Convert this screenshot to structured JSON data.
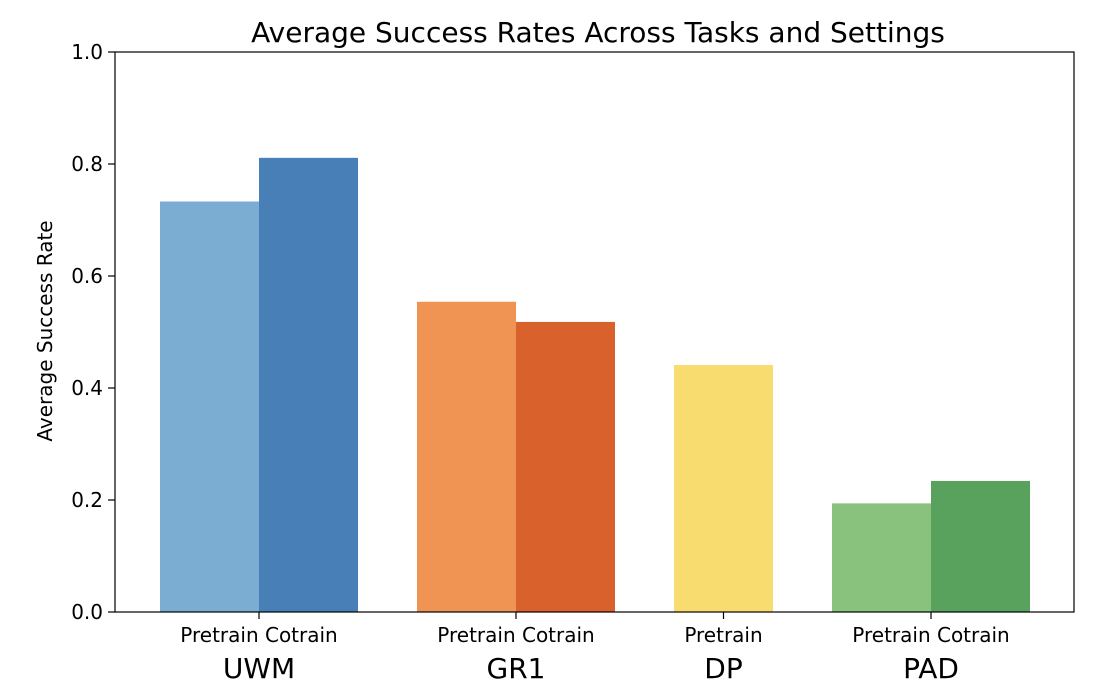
{
  "chart_data": {
    "type": "bar",
    "title": "Average Success Rates Across Tasks and Settings",
    "ylabel": "Average Success Rate",
    "xlabel": "",
    "ylim": [
      0,
      1.0
    ],
    "yticks": [
      "0.0",
      "0.2",
      "0.4",
      "0.6",
      "0.8",
      "1.0"
    ],
    "grid": false,
    "groups": [
      {
        "name": "UWM",
        "bars": [
          {
            "label": "Pretrain",
            "value": 0.733,
            "color": "#7bacd2"
          },
          {
            "label": "Cotrain",
            "value": 0.811,
            "color": "#487fb7"
          }
        ]
      },
      {
        "name": "GR1",
        "bars": [
          {
            "label": "Pretrain",
            "value": 0.554,
            "color": "#ef9453"
          },
          {
            "label": "Cotrain",
            "value": 0.518,
            "color": "#d9612b"
          }
        ]
      },
      {
        "name": "DP",
        "bars": [
          {
            "label": "Pretrain",
            "value": 0.441,
            "color": "#f9dc6f"
          }
        ]
      },
      {
        "name": "PAD",
        "bars": [
          {
            "label": "Pretrain",
            "value": 0.194,
            "color": "#88c27d"
          },
          {
            "label": "Cotrain",
            "value": 0.234,
            "color": "#59a25d"
          }
        ]
      }
    ]
  }
}
